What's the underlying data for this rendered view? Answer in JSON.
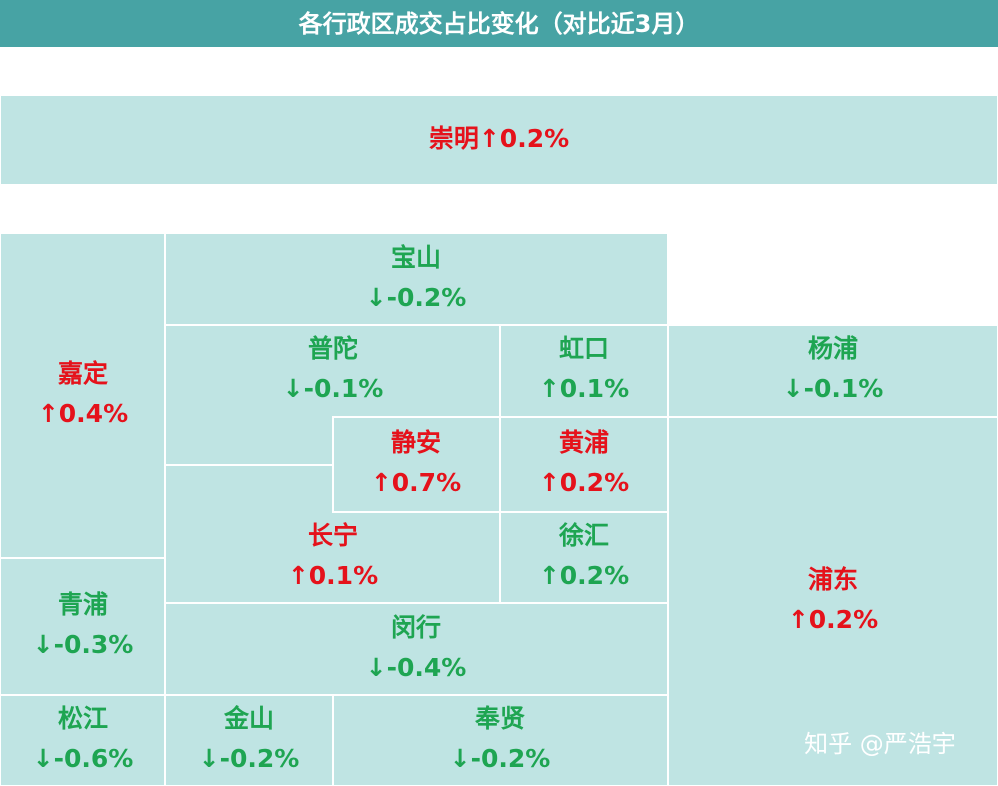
{
  "title": "各行政区成交占比变化（对比近3月）",
  "districts": [
    {
      "name": "崇明",
      "change": "↑0.2%",
      "color": "#e5121b"
    },
    {
      "name": "嘉定",
      "change": "↑0.4%",
      "color": "#e5121b"
    },
    {
      "name": "宝山",
      "change": "↓-0.2%",
      "color": "#1ea552"
    },
    {
      "name": "普陀",
      "change": "↓-0.1%",
      "color": "#1ea552"
    },
    {
      "name": "虹口",
      "change": "↑0.1%",
      "color": "#1ea552"
    },
    {
      "name": "杨浦",
      "change": "↓-0.1%",
      "color": "#1ea552"
    },
    {
      "name": "静安",
      "change": "↑0.7%",
      "color": "#e5121b"
    },
    {
      "name": "黄浦",
      "change": "↑0.2%",
      "color": "#e5121b"
    },
    {
      "name": "长宁",
      "change": "↑0.1%",
      "color": "#e5121b"
    },
    {
      "name": "徐汇",
      "change": "↑0.2%",
      "color": "#1ea552"
    },
    {
      "name": "浦东",
      "change": "↑0.2%",
      "color": "#e5121b"
    },
    {
      "name": "青浦",
      "change": "↓-0.3%",
      "color": "#1ea552"
    },
    {
      "name": "闵行",
      "change": "↓-0.4%",
      "color": "#1ea552"
    },
    {
      "name": "松江",
      "change": "↓-0.6%",
      "color": "#1ea552"
    },
    {
      "name": "金山",
      "change": "↓-0.2%",
      "color": "#1ea552"
    },
    {
      "name": "奉贤",
      "change": "↓-0.2%",
      "color": "#1ea552"
    }
  ],
  "watermark": "知乎 @严浩宇"
}
